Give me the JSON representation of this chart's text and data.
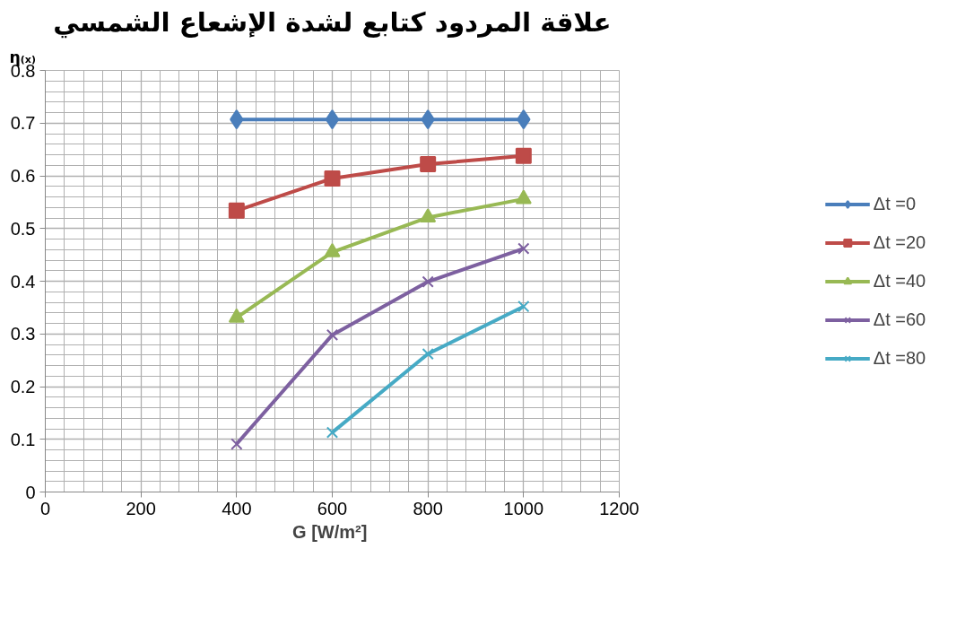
{
  "chart_data": {
    "type": "line",
    "title": "علاقة المردود كتابع لشدة الإشعاع الشمسي",
    "xlabel": "G  [W/m²]",
    "ylabel": "η₍ₓ₎",
    "x": [
      400,
      600,
      800,
      1000
    ],
    "series": [
      {
        "name": "Δt =0",
        "color": "#4a7ebb",
        "marker": "diamond",
        "values": [
          0.707,
          0.707,
          0.707,
          0.707
        ]
      },
      {
        "name": "Δt =20",
        "color": "#be4b48",
        "marker": "square",
        "values": [
          0.534,
          0.595,
          0.622,
          0.638
        ]
      },
      {
        "name": "Δt =40",
        "color": "#98b954",
        "marker": "triangle",
        "values": [
          0.331,
          0.455,
          0.521,
          0.556
        ]
      },
      {
        "name": "Δt =60",
        "color": "#7d60a0",
        "marker": "cross",
        "values": [
          0.091,
          0.298,
          0.399,
          0.462
        ]
      },
      {
        "name": "Δt =80",
        "color": "#46aac5",
        "marker": "cross",
        "values": [
          null,
          0.113,
          0.262,
          0.352
        ]
      }
    ],
    "xlim": [
      0,
      1200
    ],
    "xticks": [
      0,
      200,
      400,
      600,
      800,
      1000,
      1200
    ],
    "ylim": [
      0,
      0.8
    ],
    "yticks": [
      0,
      0.1,
      0.2,
      0.3,
      0.4,
      0.5,
      0.6,
      0.7,
      0.8
    ],
    "grid": true,
    "legend": "right",
    "line_style": "solid"
  }
}
